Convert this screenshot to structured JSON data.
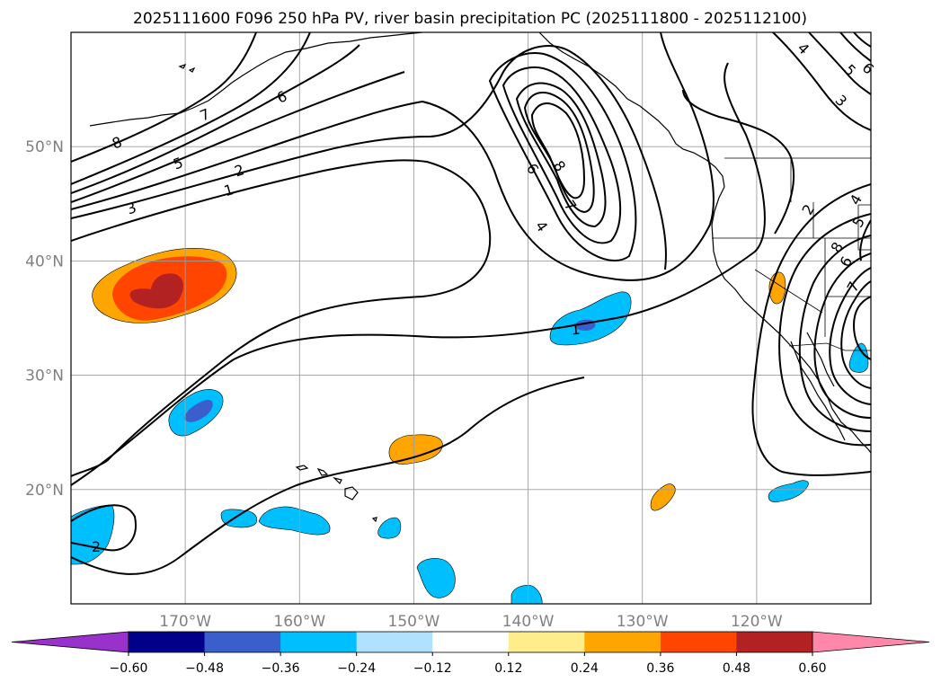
{
  "chart_data": {
    "type": "heatmap",
    "title": "2025111600 F096 250 hPa PV, river basin precipitation PC (2025111800 - 2025112100)",
    "map": {
      "lon_range": [
        -180,
        -110
      ],
      "lat_range": [
        10,
        60
      ],
      "lat_ticks": [
        {
          "value": 20,
          "label": "20°N"
        },
        {
          "value": 30,
          "label": "30°N"
        },
        {
          "value": 40,
          "label": "40°N"
        },
        {
          "value": 50,
          "label": "50°N"
        }
      ],
      "lon_ticks": [
        {
          "value": -170,
          "label": "170°W"
        },
        {
          "value": -160,
          "label": "160°W"
        },
        {
          "value": -150,
          "label": "150°W"
        },
        {
          "value": -140,
          "label": "140°W"
        },
        {
          "value": -130,
          "label": "130°W"
        },
        {
          "value": -120,
          "label": "120°W"
        }
      ],
      "grid": true
    },
    "colorbar": {
      "orientation": "horizontal",
      "extend": "both",
      "levels": [
        -0.72,
        -0.6,
        -0.48,
        -0.36,
        -0.24,
        -0.12,
        0.12,
        0.24,
        0.36,
        0.48,
        0.6,
        0.72
      ],
      "tick_labels": [
        "−0.60",
        "−0.48",
        "−0.36",
        "−0.24",
        "−0.12",
        "0.12",
        "0.24",
        "0.36",
        "0.48",
        "0.60"
      ],
      "under_color": "#9932cc",
      "over_color": "#ff88aa",
      "colors": [
        "#00008b",
        "#3a5fcd",
        "#00bfff",
        "#b0e2ff",
        "#ffffff",
        "#ffec8b",
        "#ffa500",
        "#ff4500",
        "#b22222"
      ]
    },
    "precip_regions": [
      {
        "lon": -168,
        "lat": 38,
        "level": "0.36 to 0.48"
      },
      {
        "lon": -169,
        "lat": 26.5,
        "level": "-0.48 to -0.36"
      },
      {
        "lon": -150,
        "lat": 23.5,
        "level": "0.24 to 0.36"
      },
      {
        "lon": -134,
        "lat": 35,
        "level": "-0.48 to -0.36"
      },
      {
        "lon": -118,
        "lat": 38,
        "level": "0.24 to 0.36"
      },
      {
        "lon": -129,
        "lat": 20,
        "level": "0.24 to 0.36"
      },
      {
        "lon": -117,
        "lat": 20,
        "level": "-0.36 to -0.24"
      },
      {
        "lon": -111,
        "lat": 31.5,
        "level": "-0.36 to -0.24"
      },
      {
        "lon": -177.5,
        "lat": 15.5,
        "level": "-0.36 to -0.24"
      },
      {
        "lon": -161,
        "lat": 17.5,
        "level": "-0.36 to -0.24"
      },
      {
        "lon": -155,
        "lat": 17.5,
        "level": "-0.36 to -0.24"
      },
      {
        "lon": -146,
        "lat": 17,
        "level": "-0.36 to -0.24"
      },
      {
        "lon": -141.5,
        "lat": 12,
        "level": "-0.36 to -0.24"
      },
      {
        "lon": -136,
        "lat": 10,
        "level": "-0.36 to -0.24"
      }
    ],
    "contour_labels": [
      "8",
      "7",
      "6",
      "5",
      "3",
      "2",
      "1",
      "6",
      "8",
      "7",
      "4",
      "1",
      "2",
      "4",
      "5",
      "6",
      "3",
      "2",
      "4",
      "5",
      "6",
      "7",
      "8"
    ]
  }
}
